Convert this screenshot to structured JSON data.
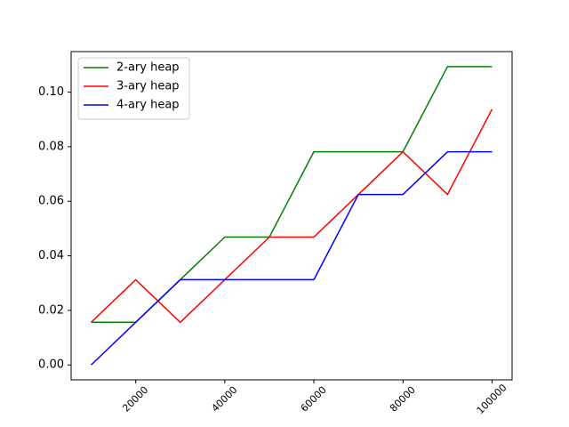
{
  "chart_data": {
    "type": "line",
    "title": "",
    "xlabel": "",
    "ylabel": "",
    "x": [
      10000,
      20000,
      30000,
      40000,
      50000,
      60000,
      70000,
      80000,
      90000,
      100000
    ],
    "xlim": [
      5500,
      104500
    ],
    "ylim": [
      -0.00547,
      0.11486
    ],
    "x_ticks": [
      20000,
      40000,
      60000,
      80000,
      100000
    ],
    "x_tick_labels": [
      "20000",
      "40000",
      "60000",
      "80000",
      "100000"
    ],
    "x_tick_rotation": -45,
    "y_ticks": [
      0.0,
      0.02,
      0.04,
      0.06,
      0.08,
      0.1
    ],
    "y_tick_labels": [
      "0.00",
      "0.02",
      "0.04",
      "0.06",
      "0.08",
      "0.10"
    ],
    "grid": false,
    "legend_position": "top-left",
    "series": [
      {
        "name": "2-ary heap",
        "color": "#008000",
        "values": [
          0.015625,
          0.015625,
          0.03125,
          0.046875,
          0.046875,
          0.078125,
          0.078125,
          0.078125,
          0.109375,
          0.109375
        ]
      },
      {
        "name": "3-ary heap",
        "color": "#ff0000",
        "values": [
          0.015625,
          0.03125,
          0.015625,
          0.03125,
          0.046875,
          0.046875,
          0.0625,
          0.078125,
          0.0625,
          0.09375
        ]
      },
      {
        "name": "4-ary heap",
        "color": "#0000ff",
        "values": [
          0.0,
          0.015625,
          0.03125,
          0.03125,
          0.03125,
          0.03125,
          0.0625,
          0.0625,
          0.078125,
          0.078125
        ]
      }
    ]
  }
}
